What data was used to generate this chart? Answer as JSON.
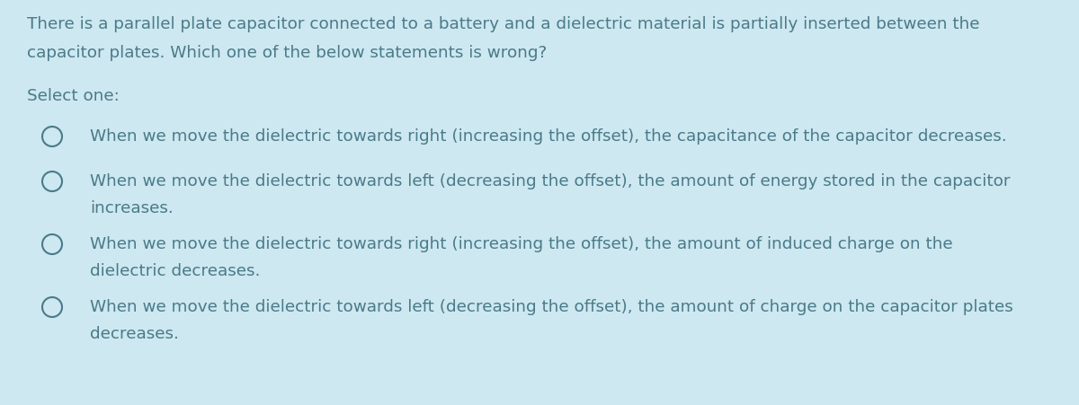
{
  "background_color": "#cde8f0",
  "text_color": "#4a7a8a",
  "title_line1": "There is a parallel plate capacitor connected to a battery and a dielectric material is partially inserted between the",
  "title_line2": "capacitor plates. Which one of the below statements is wrong?",
  "select_label": "Select one:",
  "option1": "When we move the dielectric towards right (increasing the offset), the capacitance of the capacitor decreases.",
  "option2_line1": "When we move the dielectric towards left (decreasing the offset), the amount of energy stored in the capacitor",
  "option2_line2": "increases.",
  "option3_line1": "When we move the dielectric towards right (increasing the offset), the amount of induced charge on the",
  "option3_line2": "dielectric decreases.",
  "option4_line1": "When we move the dielectric towards left (decreasing the offset), the amount of charge on the capacitor plates",
  "option4_line2": "decreases.",
  "font_size": 13.2,
  "figsize": [
    12.0,
    4.51
  ],
  "dpi": 100
}
